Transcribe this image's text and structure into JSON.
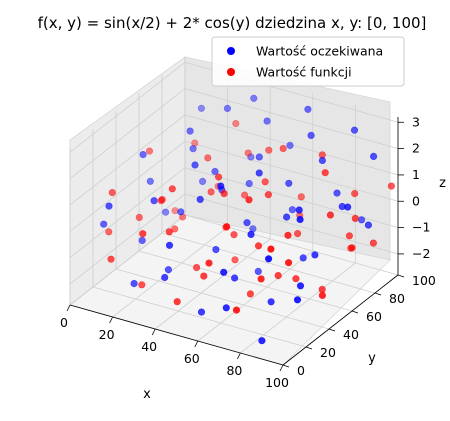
{
  "chart_data": {
    "type": "scatter3d",
    "title": "f(x, y) = sin(x/2) + 2* cos(y) dziedzina x, y: [0, 100]",
    "xlabel": "x",
    "ylabel": "y",
    "zlabel": "z",
    "xlim": [
      0,
      100
    ],
    "ylim": [
      0,
      100
    ],
    "zlim": [
      -3,
      3
    ],
    "xticks": [
      "0",
      "20",
      "40",
      "60",
      "80",
      "100"
    ],
    "yticks": [
      "0",
      "20",
      "40",
      "60",
      "80",
      "100"
    ],
    "zticks": [
      "−2",
      "−1",
      "0",
      "1",
      "2",
      "3"
    ],
    "grid": true,
    "legend_position": "top-right",
    "series": [
      {
        "name": "Wartość oczekiwana",
        "color": "#0000ff",
        "points": [
          [
            12,
            92,
            1.8
          ],
          [
            28,
            85,
            2.4
          ],
          [
            35,
            95,
            2.6
          ],
          [
            45,
            88,
            2.2
          ],
          [
            62,
            92,
            2.9
          ],
          [
            70,
            80,
            2.5
          ],
          [
            85,
            90,
            2.7
          ],
          [
            95,
            88,
            2.0
          ],
          [
            20,
            70,
            1.2
          ],
          [
            33,
            65,
            0.8
          ],
          [
            50,
            72,
            1.5
          ],
          [
            66,
            68,
            1.0
          ],
          [
            78,
            75,
            1.9
          ],
          [
            90,
            70,
            0.6
          ],
          [
            8,
            55,
            0.2
          ],
          [
            25,
            50,
            -0.4
          ],
          [
            40,
            58,
            0.5
          ],
          [
            55,
            52,
            -0.2
          ],
          [
            72,
            55,
            0.3
          ],
          [
            88,
            50,
            -0.6
          ],
          [
            98,
            60,
            1.1
          ],
          [
            15,
            35,
            -1.2
          ],
          [
            30,
            30,
            -1.8
          ],
          [
            48,
            38,
            -0.9
          ],
          [
            60,
            32,
            -1.5
          ],
          [
            75,
            36,
            -2.2
          ],
          [
            92,
            30,
            -1.0
          ],
          [
            5,
            20,
            -0.3
          ],
          [
            22,
            15,
            -2.0
          ],
          [
            38,
            12,
            -1.3
          ],
          [
            52,
            18,
            -2.5
          ],
          [
            68,
            10,
            -1.7
          ],
          [
            82,
            15,
            -2.8
          ],
          [
            96,
            20,
            -1.1
          ],
          [
            18,
            82,
            -0.5
          ],
          [
            42,
            78,
            0.1
          ],
          [
            58,
            86,
            -0.8
          ],
          [
            80,
            84,
            0.4
          ],
          [
            10,
            45,
            1.6
          ],
          [
            36,
            42,
            1.9
          ],
          [
            64,
            46,
            2.1
          ],
          [
            86,
            40,
            1.4
          ],
          [
            26,
            25,
            0.9
          ],
          [
            46,
            28,
            1.3
          ],
          [
            72,
            24,
            0.7
          ],
          [
            94,
            26,
            1.7
          ],
          [
            14,
            8,
            1.0
          ],
          [
            44,
            5,
            0.3
          ],
          [
            70,
            4,
            -0.1
          ],
          [
            90,
            6,
            0.8
          ],
          [
            32,
            98,
            0.2
          ],
          [
            56,
            60,
            -2.3
          ],
          [
            76,
            62,
            -1.4
          ],
          [
            98,
            78,
            -0.2
          ],
          [
            6,
            72,
            -1.6
          ],
          [
            52,
            95,
            1.2
          ],
          [
            84,
            98,
            -1.0
          ],
          [
            24,
            60,
            2.3
          ],
          [
            60,
            20,
            2.4
          ],
          [
            40,
            85,
            -1.9
          ]
        ]
      },
      {
        "name": "Wartość funkcji",
        "color": "#ff0000",
        "points": [
          [
            10,
            90,
            0.5
          ],
          [
            22,
            88,
            -0.8
          ],
          [
            34,
            92,
            0.6
          ],
          [
            48,
            84,
            1.3
          ],
          [
            60,
            90,
            -0.4
          ],
          [
            72,
            86,
            1.6
          ],
          [
            84,
            92,
            0.2
          ],
          [
            96,
            86,
            -1.2
          ],
          [
            14,
            72,
            -1.6
          ],
          [
            28,
            68,
            1.1
          ],
          [
            42,
            74,
            -0.2
          ],
          [
            56,
            66,
            0.9
          ],
          [
            68,
            72,
            -1.0
          ],
          [
            82,
            70,
            1.7
          ],
          [
            94,
            74,
            0.1
          ],
          [
            6,
            58,
            1.2
          ],
          [
            20,
            54,
            -1.3
          ],
          [
            36,
            56,
            0.4
          ],
          [
            50,
            50,
            -0.7
          ],
          [
            64,
            54,
            1.0
          ],
          [
            78,
            52,
            -1.8
          ],
          [
            92,
            56,
            0.8
          ],
          [
            12,
            38,
            -0.5
          ],
          [
            26,
            32,
            0.7
          ],
          [
            40,
            36,
            -1.7
          ],
          [
            54,
            34,
            1.5
          ],
          [
            68,
            38,
            -0.3
          ],
          [
            84,
            34,
            0.6
          ],
          [
            98,
            38,
            -1.5
          ],
          [
            8,
            22,
            0.9
          ],
          [
            24,
            18,
            -2.1
          ],
          [
            38,
            16,
            0.3
          ],
          [
            52,
            20,
            -1.2
          ],
          [
            66,
            14,
            1.2
          ],
          [
            80,
            18,
            -0.6
          ],
          [
            94,
            16,
            0.4
          ],
          [
            16,
            6,
            -0.9
          ],
          [
            32,
            4,
            0.5
          ],
          [
            46,
            8,
            -1.9
          ],
          [
            62,
            6,
            0.0
          ],
          [
            76,
            4,
            -1.4
          ],
          [
            90,
            8,
            1.1
          ],
          [
            30,
            80,
            -1.9
          ],
          [
            58,
            78,
            1.8
          ],
          [
            88,
            80,
            -0.9
          ],
          [
            18,
            46,
            0.0
          ],
          [
            46,
            44,
            1.6
          ],
          [
            74,
            44,
            -1.5
          ],
          [
            4,
            84,
            -2.0
          ],
          [
            100,
            60,
            -0.4
          ],
          [
            44,
            62,
            -2.2
          ],
          [
            70,
            26,
            1.9
          ],
          [
            86,
            60,
            -2.3
          ],
          [
            34,
            26,
            1.5
          ],
          [
            56,
            96,
            -1.4
          ],
          [
            98,
            98,
            0.6
          ],
          [
            2,
            30,
            -1.0
          ],
          [
            62,
            42,
            -2.4
          ],
          [
            26,
            96,
            1.4
          ],
          [
            80,
            96,
            -2.1
          ]
        ]
      }
    ]
  }
}
